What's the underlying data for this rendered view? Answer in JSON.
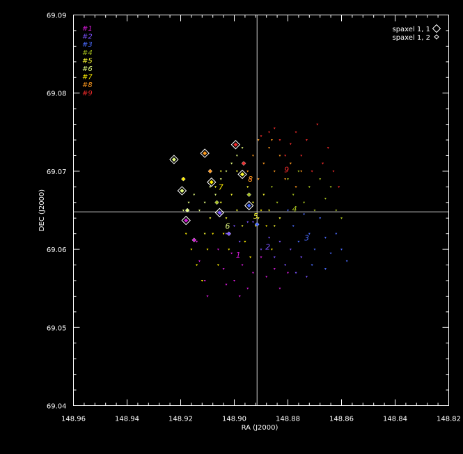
{
  "chart_data": {
    "type": "scatter",
    "xlabel": "RA (J2000)",
    "ylabel": "DEC (J2000)",
    "xlim": [
      148.96,
      148.82
    ],
    "ylim": [
      69.04,
      69.09
    ],
    "x_ticks": [
      "148.96",
      "148.94",
      "148.92",
      "148.90",
      "148.88",
      "148.86",
      "148.84",
      "148.82"
    ],
    "y_ticks": [
      "69.04",
      "69.05",
      "69.06",
      "69.07",
      "69.08",
      "69.09"
    ],
    "x_tick_values": [
      148.96,
      148.94,
      148.92,
      148.9,
      148.88,
      148.86,
      148.84,
      148.82
    ],
    "y_tick_values": [
      69.04,
      69.05,
      69.06,
      69.07,
      69.08,
      69.09
    ],
    "grid": false,
    "crosshair": {
      "ra": 148.8915,
      "dec": 69.0648
    },
    "spaxel_legend": [
      {
        "label": "spaxel 1, 1",
        "marker": "large-diamond"
      },
      {
        "label": "spaxel 1, 2",
        "marker": "small-diamond"
      }
    ],
    "series": [
      {
        "name": "#1",
        "color": "#d31ad6",
        "points": [
          [
            148.914,
            69.061
          ],
          [
            148.913,
            69.0585
          ],
          [
            148.911,
            69.056
          ],
          [
            148.91,
            69.054
          ],
          [
            148.906,
            69.06
          ],
          [
            148.904,
            69.0575
          ],
          [
            148.903,
            69.0555
          ],
          [
            148.901,
            69.0595
          ],
          [
            148.9,
            69.056
          ],
          [
            148.898,
            69.054
          ],
          [
            148.897,
            69.058
          ],
          [
            148.895,
            69.055
          ],
          [
            148.893,
            69.057
          ],
          [
            148.89,
            69.059
          ],
          [
            148.888,
            69.0565
          ],
          [
            148.885,
            69.0575
          ],
          [
            148.883,
            69.055
          ],
          [
            148.88,
            69.057
          ]
        ]
      },
      {
        "name": "#2",
        "color": "#7a52ff",
        "points": [
          [
            148.905,
            69.0645
          ],
          [
            148.903,
            69.062
          ],
          [
            148.9,
            69.063
          ],
          [
            148.898,
            69.061
          ],
          [
            148.895,
            69.0635
          ],
          [
            148.893,
            69.0635
          ],
          [
            148.89,
            69.06
          ],
          [
            148.887,
            69.0615
          ],
          [
            148.885,
            69.059
          ],
          [
            148.883,
            69.061
          ],
          [
            148.881,
            69.058
          ],
          [
            148.879,
            69.06
          ],
          [
            148.877,
            69.057
          ],
          [
            148.875,
            69.059
          ],
          [
            148.873,
            69.0565
          ]
        ]
      },
      {
        "name": "#3",
        "color": "#4a6bff",
        "points": [
          [
            148.88,
            69.065
          ],
          [
            148.878,
            69.063
          ],
          [
            148.876,
            69.061
          ],
          [
            148.874,
            69.0645
          ],
          [
            148.872,
            69.062
          ],
          [
            148.87,
            69.06
          ],
          [
            148.868,
            69.064
          ],
          [
            148.866,
            69.0615
          ],
          [
            148.864,
            69.0595
          ],
          [
            148.862,
            69.062
          ],
          [
            148.86,
            69.06
          ],
          [
            148.858,
            69.0585
          ],
          [
            148.871,
            69.058
          ],
          [
            148.866,
            69.0575
          ]
        ]
      },
      {
        "name": "#4",
        "color": "#a8c21e",
        "points": [
          [
            148.88,
            69.069
          ],
          [
            148.878,
            69.067
          ],
          [
            148.876,
            69.07
          ],
          [
            148.874,
            69.066
          ],
          [
            148.872,
            69.068
          ],
          [
            148.87,
            69.065
          ],
          [
            148.868,
            69.069
          ],
          [
            148.866,
            69.0665
          ],
          [
            148.864,
            69.068
          ],
          [
            148.862,
            69.065
          ],
          [
            148.86,
            69.064
          ],
          [
            148.884,
            69.066
          ],
          [
            148.886,
            69.068
          ]
        ]
      },
      {
        "name": "#5",
        "color": "#ffff33",
        "points": [
          [
            148.907,
            69.068
          ],
          [
            148.905,
            69.066
          ],
          [
            148.903,
            69.064
          ],
          [
            148.901,
            69.067
          ],
          [
            148.899,
            69.065
          ],
          [
            148.897,
            69.063
          ],
          [
            148.895,
            69.068
          ],
          [
            148.893,
            69.066
          ],
          [
            148.891,
            69.064
          ],
          [
            148.889,
            69.067
          ],
          [
            148.887,
            69.065
          ],
          [
            148.885,
            69.063
          ],
          [
            148.883,
            69.064
          ],
          [
            148.909,
            69.064
          ],
          [
            148.911,
            69.062
          ],
          [
            148.905,
            69.07
          ],
          [
            148.899,
            69.07
          ]
        ]
      },
      {
        "name": "#6",
        "color": "#e6ff80",
        "points": [
          [
            148.919,
            69.065
          ],
          [
            148.917,
            69.066
          ],
          [
            148.915,
            69.067
          ],
          [
            148.913,
            69.065
          ],
          [
            148.911,
            69.066
          ],
          [
            148.909,
            69.068
          ],
          [
            148.907,
            69.067
          ],
          [
            148.905,
            69.069
          ],
          [
            148.903,
            69.07
          ],
          [
            148.901,
            69.071
          ],
          [
            148.899,
            69.072
          ],
          [
            148.897,
            69.073
          ]
        ]
      },
      {
        "name": "#7",
        "color": "#ffee00",
        "points": [
          [
            148.918,
            69.062
          ],
          [
            148.916,
            69.06
          ],
          [
            148.914,
            69.058
          ],
          [
            148.912,
            69.056
          ],
          [
            148.91,
            69.06
          ],
          [
            148.908,
            69.062
          ],
          [
            148.906,
            69.058
          ],
          [
            148.904,
            69.062
          ],
          [
            148.902,
            69.06
          ],
          [
            148.896,
            69.061
          ],
          [
            148.894,
            69.059
          ],
          [
            148.892,
            69.063
          ],
          [
            148.89,
            69.065
          ],
          [
            148.888,
            69.063
          ],
          [
            148.886,
            69.06
          ]
        ]
      },
      {
        "name": "#8",
        "color": "#ff9a1e",
        "points": [
          [
            148.895,
            69.07
          ],
          [
            148.893,
            69.072
          ],
          [
            148.891,
            69.069
          ],
          [
            148.889,
            69.071
          ],
          [
            148.887,
            69.073
          ],
          [
            148.885,
            69.07
          ],
          [
            148.883,
            69.072
          ],
          [
            148.881,
            69.069
          ],
          [
            148.879,
            69.071
          ],
          [
            148.877,
            69.068
          ],
          [
            148.875,
            69.07
          ],
          [
            148.891,
            69.074
          ],
          [
            148.886,
            69.074
          ]
        ]
      },
      {
        "name": "#9",
        "color": "#f02a2a",
        "points": [
          [
            148.89,
            69.0745
          ],
          [
            148.887,
            69.075
          ],
          [
            148.885,
            69.0755
          ],
          [
            148.883,
            69.074
          ],
          [
            148.881,
            69.072
          ],
          [
            148.879,
            69.0735
          ],
          [
            148.877,
            69.075
          ],
          [
            148.875,
            69.072
          ],
          [
            148.873,
            69.074
          ],
          [
            148.871,
            69.07
          ],
          [
            148.869,
            69.076
          ],
          [
            148.867,
            69.071
          ],
          [
            148.865,
            69.073
          ],
          [
            148.863,
            69.07
          ],
          [
            148.861,
            69.068
          ],
          [
            148.896,
            69.071
          ],
          [
            148.894,
            69.069
          ]
        ]
      }
    ],
    "spaxel_markers": [
      {
        "ra": 148.9225,
        "dec": 69.0715,
        "color": "#e6ff80",
        "size": "large"
      },
      {
        "ra": 148.9195,
        "dec": 69.0675,
        "color": "#e6ff80",
        "size": "large"
      },
      {
        "ra": 148.918,
        "dec": 69.0637,
        "color": "#d31ad6",
        "size": "large"
      },
      {
        "ra": 148.911,
        "dec": 69.0723,
        "color": "#ff9a1e",
        "size": "large"
      },
      {
        "ra": 148.9085,
        "dec": 69.0686,
        "color": "#ffee00",
        "size": "large"
      },
      {
        "ra": 148.9055,
        "dec": 69.0647,
        "color": "#7a52ff",
        "size": "large"
      },
      {
        "ra": 148.8995,
        "dec": 69.0734,
        "color": "#f02a2a",
        "size": "large"
      },
      {
        "ra": 148.897,
        "dec": 69.0696,
        "color": "#ffff33",
        "size": "large"
      },
      {
        "ra": 148.8945,
        "dec": 69.0656,
        "color": "#4a6bff",
        "size": "large"
      },
      {
        "ra": 148.919,
        "dec": 69.069,
        "color": "#ffee00",
        "size": "small"
      },
      {
        "ra": 148.9175,
        "dec": 69.065,
        "color": "#e6ff80",
        "size": "small"
      },
      {
        "ra": 148.915,
        "dec": 69.0612,
        "color": "#d31ad6",
        "size": "small"
      },
      {
        "ra": 148.909,
        "dec": 69.07,
        "color": "#ff9a1e",
        "size": "small"
      },
      {
        "ra": 148.9065,
        "dec": 69.066,
        "color": "#a8c21e",
        "size": "small"
      },
      {
        "ra": 148.902,
        "dec": 69.062,
        "color": "#7a52ff",
        "size": "small"
      },
      {
        "ra": 148.8965,
        "dec": 69.071,
        "color": "#f02a2a",
        "size": "small"
      },
      {
        "ra": 148.8945,
        "dec": 69.067,
        "color": "#a8c21e",
        "size": "small"
      },
      {
        "ra": 148.8915,
        "dec": 69.0632,
        "color": "#4a6bff",
        "size": "small"
      }
    ],
    "annotations": [
      {
        "text": "1",
        "ra": 148.8985,
        "dec": 69.0593,
        "color": "#d31ad6"
      },
      {
        "text": "2",
        "ra": 148.8875,
        "dec": 69.0603,
        "color": "#7a52ff"
      },
      {
        "text": "3",
        "ra": 148.873,
        "dec": 69.0615,
        "color": "#4a6bff"
      },
      {
        "text": "4",
        "ra": 148.8775,
        "dec": 69.0652,
        "color": "#a8c21e"
      },
      {
        "text": "5",
        "ra": 148.892,
        "dec": 69.0643,
        "color": "#ffff33"
      },
      {
        "text": "6",
        "ra": 148.9025,
        "dec": 69.063,
        "color": "#e6ff80"
      },
      {
        "text": "7",
        "ra": 148.905,
        "dec": 69.068,
        "color": "#ffee00"
      },
      {
        "text": "8",
        "ra": 148.894,
        "dec": 69.069,
        "color": "#ff9a1e"
      },
      {
        "text": "9",
        "ra": 148.8805,
        "dec": 69.0702,
        "color": "#f02a2a"
      }
    ]
  }
}
